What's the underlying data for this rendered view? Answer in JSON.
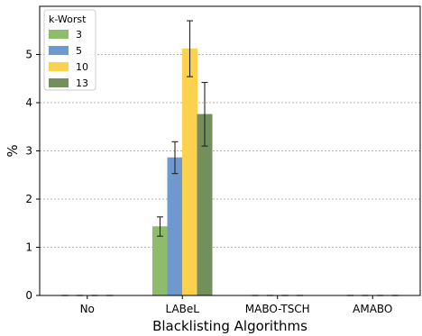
{
  "chart_data": {
    "type": "bar",
    "title": "",
    "xlabel": "Blacklisting Algorithms",
    "ylabel": "%",
    "categories": [
      "No",
      "LABeL",
      "MABO-TSCH",
      "AMABO"
    ],
    "ylim": [
      0,
      6
    ],
    "yticks": [
      0,
      1,
      2,
      3,
      4,
      5
    ],
    "grid": "horizontal-dotted",
    "legend": {
      "title": "k-Worst",
      "position": "top-left"
    },
    "series": [
      {
        "name": "3",
        "color": "#8fbc6a",
        "values": [
          0,
          1.43,
          0,
          0
        ],
        "err": [
          0,
          0.2,
          0,
          0
        ]
      },
      {
        "name": "5",
        "color": "#6f98cf",
        "values": [
          0,
          2.86,
          0,
          0
        ],
        "err": [
          0,
          0.33,
          0,
          0
        ]
      },
      {
        "name": "10",
        "color": "#fcd14e",
        "values": [
          0,
          5.12,
          0,
          0
        ],
        "err": [
          0,
          0.58,
          0,
          0
        ]
      },
      {
        "name": "13",
        "color": "#738f5e",
        "values": [
          0,
          3.76,
          0,
          0
        ],
        "err": [
          0,
          0.66,
          0,
          0
        ]
      }
    ]
  }
}
